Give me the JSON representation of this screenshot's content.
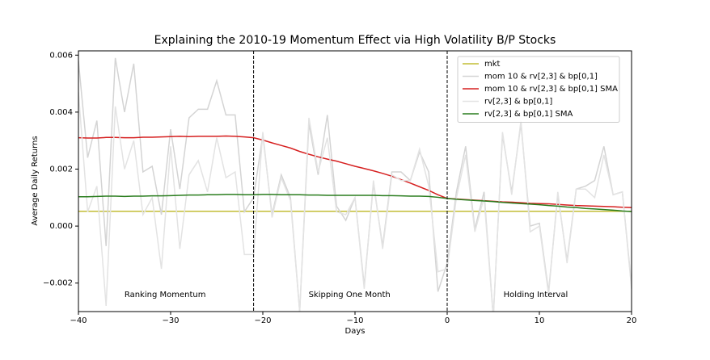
{
  "chart_data": {
    "type": "line",
    "title": "Explaining the 2010-19 Momentum Effect via High Volatility B/P Stocks",
    "x_label": "Days",
    "y_label": "Average Daily Returns",
    "x": [
      -40,
      -39,
      -38,
      -37,
      -36,
      -35,
      -34,
      -33,
      -32,
      -31,
      -30,
      -29,
      -28,
      -27,
      -26,
      -25,
      -24,
      -23,
      -22,
      -21,
      -20,
      -19,
      -18,
      -17,
      -16,
      -15,
      -14,
      -13,
      -12,
      -11,
      -10,
      -9,
      -8,
      -7,
      -6,
      -5,
      -4,
      -3,
      -2,
      -1,
      0,
      1,
      2,
      3,
      4,
      5,
      6,
      7,
      8,
      9,
      10,
      11,
      12,
      13,
      14,
      15,
      16,
      17,
      18,
      19,
      20
    ],
    "series": [
      {
        "name": "mkt",
        "color": "#c2bd35",
        "values": [
          0.00052,
          0.00052,
          0.00052,
          0.00052,
          0.00052,
          0.00052,
          0.00052,
          0.00052,
          0.00052,
          0.00052,
          0.00052,
          0.00052,
          0.00052,
          0.00052,
          0.00052,
          0.00052,
          0.00052,
          0.00052,
          0.00052,
          0.00052,
          0.00052,
          0.00052,
          0.00052,
          0.00052,
          0.00052,
          0.00052,
          0.00052,
          0.00052,
          0.00052,
          0.00052,
          0.00052,
          0.00052,
          0.00052,
          0.00052,
          0.00052,
          0.00052,
          0.00052,
          0.00052,
          0.00052,
          0.00052,
          0.00052,
          0.00052,
          0.00052,
          0.00052,
          0.00052,
          0.00052,
          0.00052,
          0.00052,
          0.00052,
          0.00052,
          0.00052,
          0.00052,
          0.00052,
          0.00052,
          0.00052,
          0.00052,
          0.00052,
          0.00052,
          0.00052,
          0.00052,
          0.00052
        ]
      },
      {
        "name": "mom 10 & rv[2,3] & bp[0,1]",
        "color": "#d4d4d4",
        "values": [
          0.0058,
          0.0024,
          0.0037,
          -0.0007,
          0.0059,
          0.004,
          0.0057,
          0.0019,
          0.0021,
          0.0004,
          0.0034,
          0.0013,
          0.0038,
          0.0041,
          0.0041,
          0.0051,
          0.0039,
          0.0039,
          0.0005,
          0.001,
          0.0032,
          0.0004,
          0.0018,
          0.001,
          -0.003,
          0.0036,
          0.0018,
          0.0039,
          0.0007,
          0.0002,
          0.001,
          -0.0021,
          0.0015,
          -0.0007,
          0.0019,
          0.0019,
          0.0016,
          0.0026,
          0.0019,
          -0.0023,
          -0.0013,
          0.0012,
          0.0028,
          -0.0001,
          0.0012,
          -0.0032,
          0.0032,
          0.0012,
          0.0036,
          0.0,
          0.0001,
          -0.0023,
          0.0011,
          -0.0012,
          0.0013,
          0.0014,
          0.0016,
          0.0028,
          0.0011,
          0.0012,
          -0.0021
        ]
      },
      {
        "name": "mom 10 & rv[2,3] & bp[0,1] SMA",
        "color": "#d62020",
        "values": [
          0.0031,
          0.00309,
          0.00309,
          0.00311,
          0.00311,
          0.0031,
          0.0031,
          0.00312,
          0.00312,
          0.00313,
          0.00314,
          0.00315,
          0.00314,
          0.00315,
          0.00315,
          0.00315,
          0.00316,
          0.00315,
          0.00313,
          0.0031,
          0.00302,
          0.00292,
          0.00283,
          0.00274,
          0.00262,
          0.00252,
          0.00243,
          0.00235,
          0.00228,
          0.00219,
          0.0021,
          0.00202,
          0.00194,
          0.00185,
          0.00175,
          0.00163,
          0.00151,
          0.00138,
          0.00125,
          0.0011,
          0.00097,
          0.00095,
          0.00093,
          0.00091,
          0.00089,
          0.00087,
          0.00085,
          0.00084,
          0.00082,
          0.0008,
          0.00079,
          0.00078,
          0.00076,
          0.00074,
          0.00072,
          0.00071,
          0.0007,
          0.00069,
          0.00068,
          0.00066,
          0.00065
        ]
      },
      {
        "name": "rv[2,3] & bp[0,1]",
        "color": "#e3e3e3",
        "values": [
          0.0047,
          0.0005,
          0.0014,
          -0.0028,
          0.0042,
          0.002,
          0.003,
          0.0004,
          0.001,
          -0.0015,
          0.0028,
          -0.0008,
          0.0018,
          0.0023,
          0.0012,
          0.0031,
          0.0017,
          0.0019,
          -0.001,
          -0.001,
          0.0033,
          0.0003,
          0.0017,
          0.0009,
          -0.003,
          0.0038,
          0.0019,
          0.0031,
          0.0005,
          0.0004,
          0.001,
          -0.0022,
          0.0016,
          -0.0008,
          0.0018,
          0.0016,
          0.0016,
          0.0027,
          0.0014,
          -0.0016,
          -0.0015,
          0.001,
          0.0025,
          -0.0002,
          0.001,
          -0.0032,
          0.0033,
          0.0011,
          0.0037,
          -0.0002,
          0.0,
          -0.0024,
          0.0012,
          -0.0013,
          0.0013,
          0.0013,
          0.001,
          0.0025,
          0.0011,
          0.0012,
          -0.0022
        ]
      },
      {
        "name": "rv[2,3] & bp[0,1] SMA",
        "color": "#2a7d1e",
        "values": [
          0.00103,
          0.00103,
          0.00104,
          0.00105,
          0.00105,
          0.00104,
          0.00105,
          0.00105,
          0.00106,
          0.00106,
          0.00107,
          0.00108,
          0.00109,
          0.00109,
          0.0011,
          0.0011,
          0.00111,
          0.00111,
          0.0011,
          0.0011,
          0.00111,
          0.00111,
          0.0011,
          0.0011,
          0.0011,
          0.00109,
          0.00109,
          0.00108,
          0.00108,
          0.00108,
          0.00108,
          0.00108,
          0.00108,
          0.00107,
          0.00107,
          0.00106,
          0.00105,
          0.00105,
          0.00104,
          0.00101,
          0.00097,
          0.00094,
          0.00092,
          0.0009,
          0.00088,
          0.00086,
          0.00083,
          0.00081,
          0.00079,
          0.00077,
          0.00075,
          0.00072,
          0.0007,
          0.00067,
          0.00065,
          0.00062,
          0.0006,
          0.00058,
          0.00056,
          0.00053,
          0.00051
        ]
      }
    ],
    "xlim": [
      -40,
      20
    ],
    "ylim": [
      -0.003,
      0.00615
    ],
    "xticks": [
      {
        "value": -40,
        "label": "−40"
      },
      {
        "value": -30,
        "label": "−30"
      },
      {
        "value": -20,
        "label": "−20"
      },
      {
        "value": -10,
        "label": "−10"
      },
      0,
      10,
      20
    ],
    "yticks": [
      {
        "value": -0.002,
        "label": "−0.002"
      },
      {
        "value": 0,
        "label": "0.000"
      },
      0.002,
      0.004,
      0.006
    ],
    "vlines": [
      -21,
      0
    ],
    "annotations": [
      {
        "text": "Ranking Momentum",
        "x": -30.6,
        "y": -0.0024
      },
      {
        "text": "Skipping One Month",
        "x": -10.6,
        "y": -0.0024
      },
      {
        "text": "Holding Interval",
        "x": 9.6,
        "y": -0.0024
      }
    ],
    "legend": "upper right",
    "grid": false
  }
}
